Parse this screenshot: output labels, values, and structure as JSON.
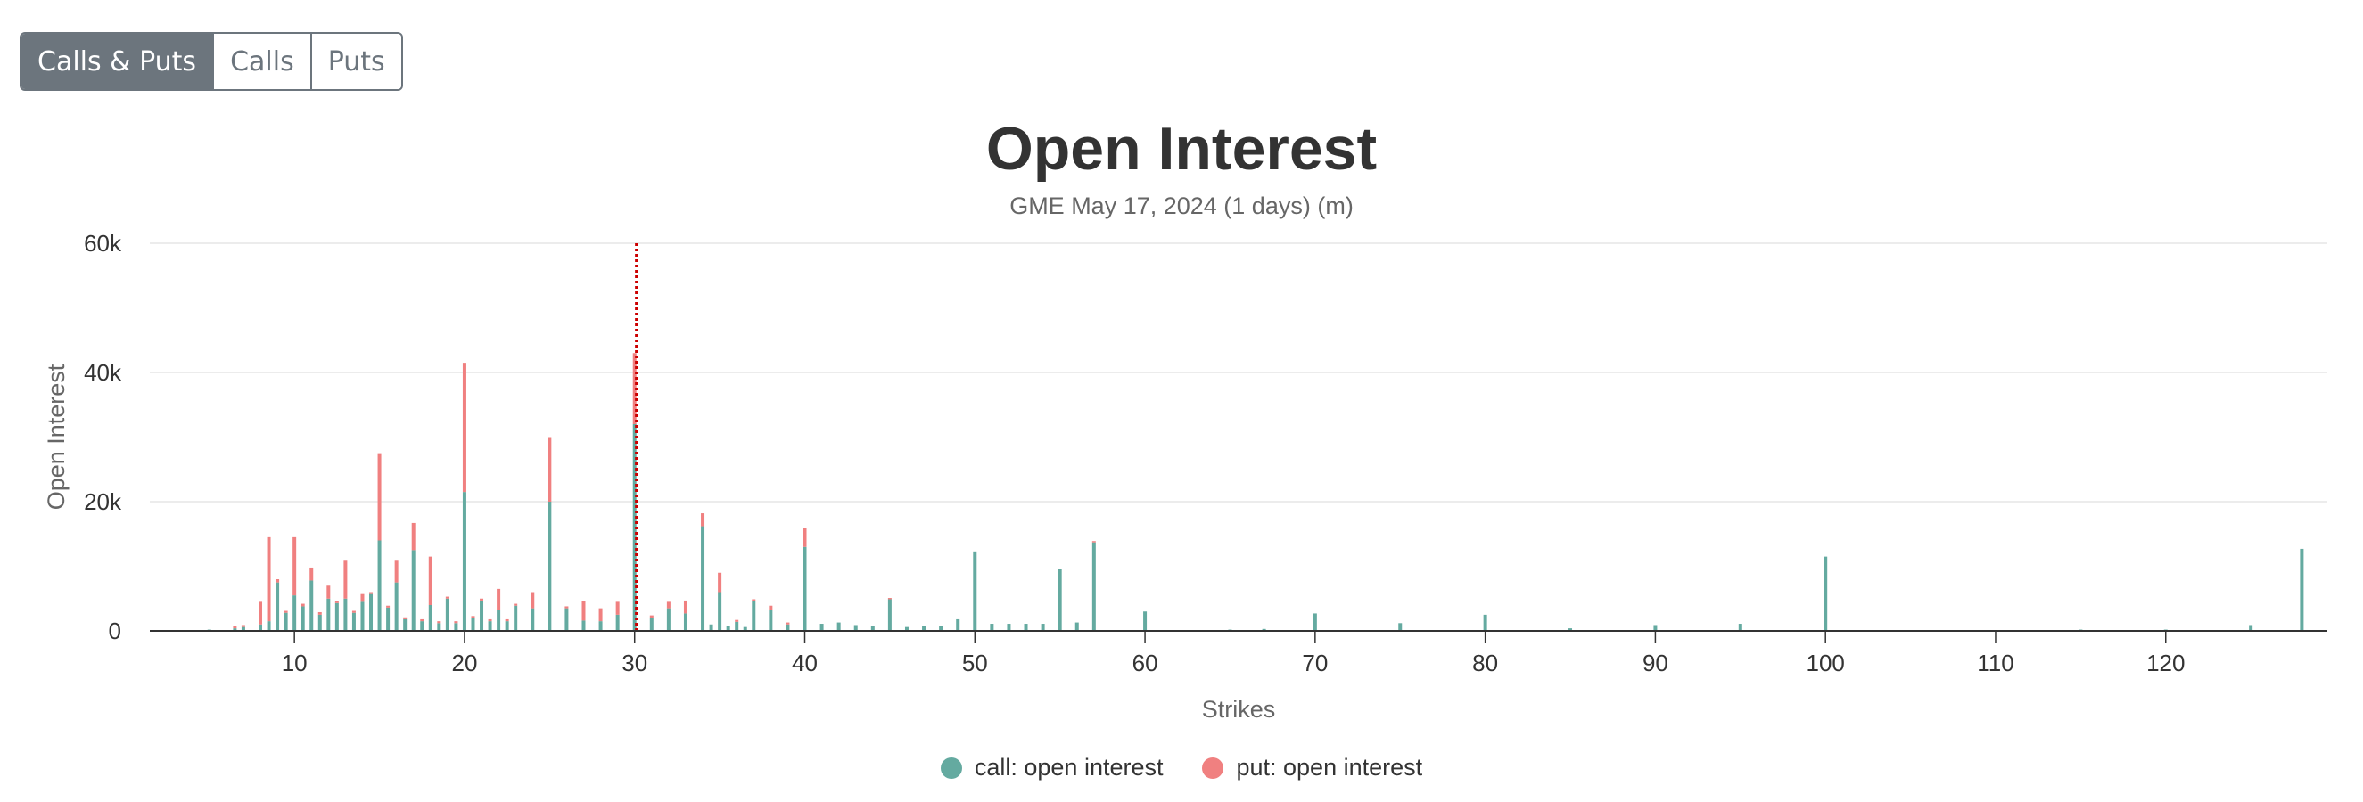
{
  "toolbar": {
    "buttons": [
      {
        "label": "Calls & Puts",
        "active": true
      },
      {
        "label": "Calls",
        "active": false
      },
      {
        "label": "Puts",
        "active": false
      }
    ]
  },
  "colors": {
    "call": "#64aaa0",
    "put": "#f08080",
    "marker": "#cc0000",
    "grid": "#e6e6e6",
    "axis": "#333333"
  },
  "chart_data": {
    "type": "bar",
    "stacked": true,
    "title": "Open Interest",
    "subtitle": "GME May 17, 2024 (1 days) (m)",
    "xlabel": "Strikes",
    "ylabel": "Open Interest",
    "xlim": [
      1.5,
      129.5
    ],
    "xticks": [
      10,
      20,
      30,
      40,
      50,
      60,
      70,
      80,
      90,
      100,
      110,
      120
    ],
    "ylim": [
      0,
      60000
    ],
    "yticks": [
      0,
      20000,
      40000,
      60000
    ],
    "ytick_labels": [
      "0",
      "20k",
      "40k",
      "60k"
    ],
    "grid": true,
    "legend_position": "bottom-center",
    "marker_line": {
      "x": 30.1,
      "style": "dotted"
    },
    "series": [
      {
        "name": "call: open interest",
        "points": [
          [
            5,
            200
          ],
          [
            6.5,
            400
          ],
          [
            7,
            600
          ],
          [
            8,
            1000
          ],
          [
            8.5,
            1500
          ],
          [
            9,
            7500
          ],
          [
            9.5,
            2800
          ],
          [
            10,
            5500
          ],
          [
            10.5,
            3800
          ],
          [
            11,
            7800
          ],
          [
            11.5,
            2500
          ],
          [
            12,
            5000
          ],
          [
            12.5,
            4300
          ],
          [
            13,
            5000
          ],
          [
            13.5,
            2800
          ],
          [
            14,
            4500
          ],
          [
            14.5,
            5700
          ],
          [
            15,
            14000
          ],
          [
            15.5,
            3600
          ],
          [
            16,
            7500
          ],
          [
            16.5,
            1800
          ],
          [
            17,
            12500
          ],
          [
            17.5,
            1500
          ],
          [
            18,
            4000
          ],
          [
            18.5,
            1200
          ],
          [
            19,
            5000
          ],
          [
            19.5,
            1200
          ],
          [
            20,
            21500
          ],
          [
            20.5,
            2000
          ],
          [
            21,
            4700
          ],
          [
            21.5,
            1500
          ],
          [
            22,
            3300
          ],
          [
            22.5,
            1500
          ],
          [
            23,
            3900
          ],
          [
            24,
            3500
          ],
          [
            25,
            20000
          ],
          [
            26,
            3500
          ],
          [
            27,
            1600
          ],
          [
            28,
            1500
          ],
          [
            29,
            2500
          ],
          [
            30,
            32000
          ],
          [
            31,
            2000
          ],
          [
            32,
            3500
          ],
          [
            33,
            2700
          ],
          [
            34,
            16200
          ],
          [
            34.5,
            1000
          ],
          [
            35,
            6000
          ],
          [
            35.5,
            800
          ],
          [
            36,
            1400
          ],
          [
            36.5,
            600
          ],
          [
            37,
            4600
          ],
          [
            38,
            3200
          ],
          [
            39,
            1000
          ],
          [
            40,
            13000
          ],
          [
            41,
            1100
          ],
          [
            42,
            1300
          ],
          [
            43,
            900
          ],
          [
            44,
            800
          ],
          [
            45,
            4900
          ],
          [
            46,
            600
          ],
          [
            47,
            700
          ],
          [
            48,
            700
          ],
          [
            49,
            1800
          ],
          [
            50,
            12300
          ],
          [
            51,
            1100
          ],
          [
            52,
            1100
          ],
          [
            53,
            1100
          ],
          [
            54,
            1100
          ],
          [
            55,
            9600
          ],
          [
            56,
            1300
          ],
          [
            57,
            13700
          ],
          [
            60,
            3000
          ],
          [
            65,
            200
          ],
          [
            67,
            300
          ],
          [
            70,
            2700
          ],
          [
            75,
            1200
          ],
          [
            80,
            2500
          ],
          [
            85,
            400
          ],
          [
            90,
            900
          ],
          [
            95,
            1100
          ],
          [
            100,
            11500
          ],
          [
            115,
            200
          ],
          [
            120,
            200
          ],
          [
            125,
            900
          ],
          [
            128,
            12700
          ]
        ]
      },
      {
        "name": "put: open interest",
        "points": [
          [
            6.5,
            300
          ],
          [
            7,
            300
          ],
          [
            8,
            3500
          ],
          [
            8.5,
            13000
          ],
          [
            9,
            500
          ],
          [
            9.5,
            300
          ],
          [
            10,
            9000
          ],
          [
            10.5,
            400
          ],
          [
            11,
            2000
          ],
          [
            11.5,
            400
          ],
          [
            12,
            2000
          ],
          [
            12.5,
            300
          ],
          [
            13,
            6000
          ],
          [
            13.5,
            300
          ],
          [
            14,
            1200
          ],
          [
            14.5,
            300
          ],
          [
            15,
            13500
          ],
          [
            15.5,
            300
          ],
          [
            16,
            3500
          ],
          [
            16.5,
            300
          ],
          [
            17,
            4200
          ],
          [
            17.5,
            300
          ],
          [
            18,
            7500
          ],
          [
            18.5,
            300
          ],
          [
            19,
            300
          ],
          [
            19.5,
            300
          ],
          [
            20,
            20000
          ],
          [
            20.5,
            300
          ],
          [
            21,
            300
          ],
          [
            21.5,
            300
          ],
          [
            22,
            3200
          ],
          [
            22.5,
            300
          ],
          [
            23,
            300
          ],
          [
            24,
            2500
          ],
          [
            25,
            10000
          ],
          [
            26,
            300
          ],
          [
            27,
            3000
          ],
          [
            28,
            2000
          ],
          [
            29,
            2000
          ],
          [
            30,
            11000
          ],
          [
            31,
            400
          ],
          [
            32,
            1000
          ],
          [
            33,
            2000
          ],
          [
            34,
            2000
          ],
          [
            35,
            3000
          ],
          [
            36,
            300
          ],
          [
            37,
            300
          ],
          [
            38,
            700
          ],
          [
            39,
            300
          ],
          [
            40,
            3000
          ],
          [
            45,
            200
          ],
          [
            57,
            200
          ]
        ]
      }
    ]
  }
}
